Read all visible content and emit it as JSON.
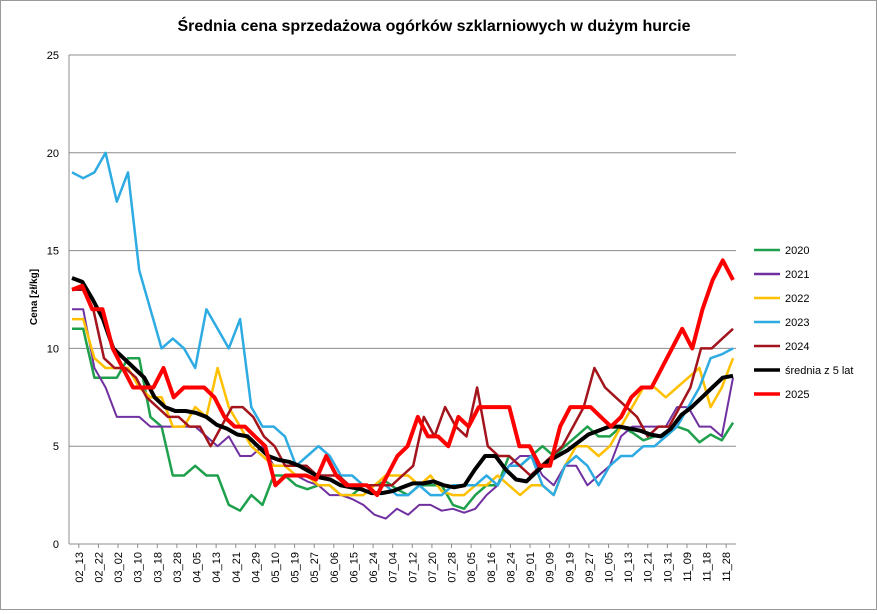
{
  "chart_data": {
    "type": "line",
    "title": "Średnia cena sprzedażowa ogórków szklarniowych w dużym hurcie",
    "ylabel": "Cena [zł/kg]",
    "xlabel": "",
    "ylim": [
      0,
      25
    ],
    "yticks": [
      0,
      5,
      10,
      15,
      20,
      25
    ],
    "x_ticks": [
      "02_13",
      "02_22",
      "03_02",
      "03_10",
      "03_18",
      "03_28",
      "04_05",
      "04_13",
      "04_21",
      "04_29",
      "05_10",
      "05_19",
      "05_27",
      "06_06",
      "06_15",
      "06_24",
      "07_04",
      "07_12",
      "07_20",
      "07_28",
      "08_05",
      "08_16",
      "08_24",
      "09_01",
      "09_09",
      "09_19",
      "09_27",
      "10_05",
      "10_13",
      "10_21",
      "10_31",
      "11_09",
      "11_18",
      "11_28"
    ],
    "grid": "horizontal",
    "legend_position": "right",
    "series": [
      {
        "name": "2020",
        "color": "#1fa04c",
        "width": 2.5,
        "values": [
          11,
          11,
          8.5,
          8.5,
          8.5,
          9.5,
          9.5,
          6.5,
          6,
          3.5,
          3.5,
          4,
          3.5,
          3.5,
          2,
          1.7,
          2.5,
          2,
          3.5,
          3.5,
          3,
          2.8,
          3,
          3,
          2.5,
          2.5,
          3,
          3,
          3.2,
          2.8,
          2.5,
          3,
          3,
          3,
          2,
          1.8,
          2.5,
          3,
          3,
          4.5,
          4,
          4.5,
          5,
          4.5,
          5,
          5.5,
          6,
          5.5,
          5.5,
          6,
          5.7,
          5.3,
          5.5,
          5.5,
          6,
          5.8,
          5.2,
          5.6,
          5.3,
          6.2
        ]
      },
      {
        "name": "2021",
        "color": "#7030a0",
        "width": 2,
        "values": [
          12,
          12,
          9,
          8,
          6.5,
          6.5,
          6.5,
          6,
          6,
          6,
          6,
          6,
          5.5,
          5,
          5.5,
          4.5,
          4.5,
          5,
          4,
          4,
          3.5,
          3.2,
          3,
          2.5,
          2.5,
          2.3,
          2,
          1.5,
          1.3,
          1.8,
          1.5,
          2,
          2,
          1.7,
          1.8,
          1.6,
          1.8,
          2.5,
          3,
          4,
          4.5,
          4.5,
          3.5,
          3,
          4,
          4,
          3,
          3.5,
          4,
          5.5,
          6,
          6,
          6,
          6,
          7,
          7,
          6,
          6,
          5.5,
          8.5
        ]
      },
      {
        "name": "2022",
        "color": "#ffc000",
        "width": 2.5,
        "values": [
          11.5,
          11.5,
          9.5,
          9,
          9,
          9,
          8,
          7.5,
          7.5,
          6,
          6,
          7,
          6.5,
          9,
          7,
          6,
          5,
          4.5,
          4,
          4,
          3.5,
          3.5,
          3,
          3,
          2.5,
          2.5,
          2.5,
          3,
          3.5,
          3.5,
          3.5,
          3,
          3.5,
          2.7,
          2.5,
          2.5,
          3,
          3,
          3.5,
          3,
          2.5,
          3,
          3,
          2.5,
          4,
          5,
          5,
          4.5,
          5,
          6,
          7,
          8,
          8,
          7.5,
          8,
          8.5,
          9,
          7,
          8,
          9.5
        ]
      },
      {
        "name": "2023",
        "color": "#2eabe2",
        "width": 2.5,
        "values": [
          19,
          18.7,
          19,
          20,
          17.5,
          19,
          14,
          12,
          10,
          10.5,
          10,
          9,
          12,
          11,
          10,
          11.5,
          7,
          6,
          6,
          5.5,
          4,
          4.5,
          5,
          4.5,
          3.5,
          3.5,
          3,
          3,
          3,
          2.5,
          2.5,
          3,
          2.5,
          2.5,
          3,
          3,
          3,
          3.5,
          3,
          4,
          4,
          4.5,
          3,
          2.5,
          4,
          4.5,
          4,
          3,
          4,
          4.5,
          4.5,
          5,
          5,
          5.5,
          6,
          7,
          8,
          9.5,
          9.7,
          10
        ]
      },
      {
        "name": "2024",
        "color": "#a3141c",
        "width": 2.5,
        "values": [
          13,
          13,
          12,
          9.5,
          9,
          9,
          8.5,
          7.5,
          7,
          6.5,
          6.5,
          6,
          6,
          5,
          6,
          7,
          7,
          6.5,
          5.5,
          5,
          4,
          4,
          4,
          3.5,
          3.5,
          3.5,
          3,
          3,
          3,
          3,
          3,
          3.5,
          4,
          6.5,
          5.5,
          7,
          6,
          5.5,
          8,
          5,
          4.5,
          4.5,
          4,
          3.5,
          4,
          4.5,
          5,
          6,
          7,
          9,
          8,
          7.5,
          7,
          6.5,
          5.5,
          6,
          6,
          7,
          8,
          10,
          10,
          10.5,
          11
        ]
      },
      {
        "name": "średnia z 5 lat",
        "color": "#000000",
        "width": 4,
        "values": [
          13.6,
          13.4,
          12.5,
          11.5,
          10,
          9.5,
          9,
          8.5,
          7.5,
          7,
          6.8,
          6.8,
          6.7,
          6.5,
          6.1,
          5.9,
          5.6,
          5.5,
          5,
          4.5,
          4.3,
          4.2,
          4,
          3.7,
          3.4,
          3.3,
          3,
          2.9,
          2.8,
          2.6,
          2.6,
          2.7,
          2.9,
          3.1,
          3.1,
          3.2,
          3,
          2.9,
          3,
          3.8,
          4.5,
          4.5,
          3.8,
          3.3,
          3.2,
          3.7,
          4.2,
          4.5,
          4.8,
          5.2,
          5.6,
          5.8,
          6,
          6,
          5.9,
          5.8,
          5.6,
          5.5,
          5.9,
          6.6,
          7,
          7.5,
          8,
          8.5,
          8.6
        ]
      },
      {
        "name": "2025",
        "color": "#ff0000",
        "width": 4,
        "values": [
          13,
          13.2,
          12,
          12,
          10,
          9,
          8,
          8,
          8,
          9,
          7.5,
          8,
          8,
          8,
          7.5,
          6.5,
          6,
          6,
          5.5,
          5,
          3,
          3.5,
          3.5,
          3.5,
          3.3,
          4.5,
          3.5,
          3,
          3,
          3,
          2.5,
          3.5,
          4.5,
          5,
          6.5,
          5.5,
          5.5,
          5,
          6.5,
          6,
          7,
          7,
          7,
          7,
          5,
          5,
          4,
          4,
          6,
          7,
          7,
          7,
          6.5,
          6,
          6.5,
          7.5,
          8,
          8,
          9,
          10,
          11,
          10,
          12,
          13.5,
          14.5,
          13.5
        ]
      }
    ]
  }
}
